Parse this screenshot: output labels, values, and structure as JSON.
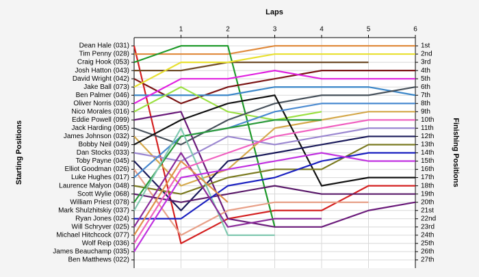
{
  "chart_data": {
    "type": "line",
    "title": "Laps",
    "ylabel": "Starting Positions",
    "y2label": "Finishing Positions",
    "x": [
      0,
      1,
      2,
      3,
      4,
      5,
      6
    ],
    "xlim": [
      0,
      6
    ],
    "xticks": [
      1,
      2,
      3,
      4,
      5,
      6
    ],
    "ylim": [
      0,
      28
    ],
    "y_inverted": true,
    "grid": true,
    "yticks": [
      {
        "value": 1,
        "label": "Dean Hale (031)"
      },
      {
        "value": 2,
        "label": "Tim Penny (028)"
      },
      {
        "value": 3,
        "label": "Craig Hook (053)"
      },
      {
        "value": 4,
        "label": "Josh Hatton (043)"
      },
      {
        "value": 5,
        "label": "David Wright (042)"
      },
      {
        "value": 6,
        "label": "Jake Ball (073)"
      },
      {
        "value": 7,
        "label": "Ben Palmer (046)"
      },
      {
        "value": 8,
        "label": "Oliver Norris (030)"
      },
      {
        "value": 9,
        "label": "Nico Morales (016)"
      },
      {
        "value": 10,
        "label": "Eddie Powell (099)"
      },
      {
        "value": 11,
        "label": "Jack Harding (065)"
      },
      {
        "value": 12,
        "label": "James Johnson (032)"
      },
      {
        "value": 13,
        "label": "Bobby Neil (049)"
      },
      {
        "value": 14,
        "label": "Dan Stocks (033)"
      },
      {
        "value": 15,
        "label": "Toby Payne (045)"
      },
      {
        "value": 16,
        "label": "Elliot Goodman (026)"
      },
      {
        "value": 17,
        "label": "Luke Hughes (017)"
      },
      {
        "value": 18,
        "label": "Laurence Malyon (048)"
      },
      {
        "value": 19,
        "label": "Scott Wylie (068)"
      },
      {
        "value": 20,
        "label": "William Priest (078)"
      },
      {
        "value": 21,
        "label": "Mark Shulzhitskiy (037)"
      },
      {
        "value": 22,
        "label": "Ryan Jones (024)"
      },
      {
        "value": 23,
        "label": "Will Schryver (025)"
      },
      {
        "value": 24,
        "label": "Michael Hitchcock (077)"
      },
      {
        "value": 25,
        "label": "Wolf Reip (036)"
      },
      {
        "value": 26,
        "label": "James Beauchamp (035)"
      },
      {
        "value": 27,
        "label": "Ben Matthews (022)"
      }
    ],
    "y2lim": [
      0,
      28
    ],
    "y2ticks": [
      {
        "value": 1,
        "label": "1st"
      },
      {
        "value": 2,
        "label": "2nd"
      },
      {
        "value": 3,
        "label": "3rd"
      },
      {
        "value": 4,
        "label": "4th"
      },
      {
        "value": 5,
        "label": "5th"
      },
      {
        "value": 6,
        "label": "6th"
      },
      {
        "value": 7,
        "label": "7th"
      },
      {
        "value": 8,
        "label": "8th"
      },
      {
        "value": 9,
        "label": "9th"
      },
      {
        "value": 10,
        "label": "10th"
      },
      {
        "value": 11,
        "label": "11th"
      },
      {
        "value": 12,
        "label": "12th"
      },
      {
        "value": 13,
        "label": "13th"
      },
      {
        "value": 14,
        "label": "14th"
      },
      {
        "value": 15,
        "label": "15th"
      },
      {
        "value": 16,
        "label": "16th"
      },
      {
        "value": 17,
        "label": "17th"
      },
      {
        "value": 18,
        "label": "18th"
      },
      {
        "value": 19,
        "label": "19th"
      },
      {
        "value": 20,
        "label": "20th"
      },
      {
        "value": 21,
        "label": "21st"
      },
      {
        "value": 22,
        "label": "22nd"
      },
      {
        "value": 23,
        "label": "23rd"
      },
      {
        "value": 24,
        "label": "24th"
      },
      {
        "value": 25,
        "label": "25th"
      },
      {
        "value": 26,
        "label": "26th"
      },
      {
        "value": 27,
        "label": "27th"
      }
    ],
    "series": [
      {
        "color": "#d42020",
        "values": [
          1,
          25,
          22,
          21,
          21,
          18,
          18
        ]
      },
      {
        "color": "#e08a3c",
        "values": [
          2,
          2,
          2,
          1,
          1,
          1,
          1
        ]
      },
      {
        "color": "#1f9a2a",
        "values": [
          3,
          1,
          1,
          23,
          null,
          null,
          null
        ]
      },
      {
        "color": "#6e4a26",
        "values": [
          4,
          4,
          3,
          3,
          3,
          3,
          null
        ]
      },
      {
        "color": "#7a1414",
        "values": [
          5,
          8,
          6,
          5,
          4,
          4,
          4
        ]
      },
      {
        "color": "#e8e030",
        "values": [
          6,
          3,
          3,
          2,
          2,
          2,
          2
        ]
      },
      {
        "color": "#3a86c8",
        "values": [
          7,
          7,
          7,
          6,
          6,
          6,
          7
        ]
      },
      {
        "color": "#e020e0",
        "values": [
          8,
          5,
          5,
          4,
          5,
          5,
          5
        ]
      },
      {
        "color": "#9ae040",
        "values": [
          9,
          6,
          9,
          10,
          9,
          null,
          null
        ]
      },
      {
        "color": "#6a1a7a",
        "values": [
          10,
          9,
          22,
          23,
          23,
          21,
          20
        ]
      },
      {
        "color": "#46505a",
        "values": [
          11,
          13,
          10,
          8,
          7,
          7,
          6
        ]
      },
      {
        "color": "#d4a84a",
        "values": [
          12,
          18,
          16,
          11,
          10,
          9,
          9
        ]
      },
      {
        "color": "#111111",
        "values": [
          13,
          10,
          8,
          7,
          18,
          17,
          17
        ]
      },
      {
        "color": "#9a86d0",
        "values": [
          14,
          15,
          12,
          13,
          12,
          11,
          11
        ]
      },
      {
        "color": "#1a1a5a",
        "values": [
          15,
          21,
          15,
          14,
          13,
          12,
          12
        ]
      },
      {
        "color": "#e8a088",
        "values": [
          16,
          24,
          21,
          20,
          20,
          20,
          null
        ]
      },
      {
        "color": "#4a8ad0",
        "values": [
          17,
          12,
          11,
          9,
          8,
          8,
          8
        ]
      },
      {
        "color": "#7a7a20",
        "values": [
          18,
          19,
          17,
          16,
          16,
          13,
          13
        ]
      },
      {
        "color": "#5a1a6a",
        "values": [
          19,
          20,
          19,
          18,
          19,
          19,
          19
        ]
      },
      {
        "color": "#2a9a3a",
        "values": [
          20,
          12,
          11,
          10,
          10,
          null,
          null
        ]
      },
      {
        "color": "#80c8b0",
        "values": [
          21,
          11,
          24,
          24,
          null,
          null,
          null
        ]
      },
      {
        "color": "#1a20c0",
        "values": [
          22,
          22,
          18,
          17,
          15,
          14,
          14
        ]
      },
      {
        "color": "#8a2a9a",
        "values": [
          23,
          14,
          23,
          22,
          22,
          null,
          null
        ]
      },
      {
        "color": "#e0904a",
        "values": [
          24,
          15,
          20,
          null,
          null,
          null,
          null
        ]
      },
      {
        "color": "#f060c0",
        "values": [
          25,
          16,
          14,
          12,
          11,
          10,
          10
        ]
      },
      {
        "color": "#c030e0",
        "values": [
          26,
          17,
          16,
          15,
          14,
          15,
          15
        ]
      },
      {
        "color": "#a0a0a0",
        "values": [
          27,
          null,
          null,
          null,
          null,
          null,
          null
        ]
      }
    ]
  }
}
